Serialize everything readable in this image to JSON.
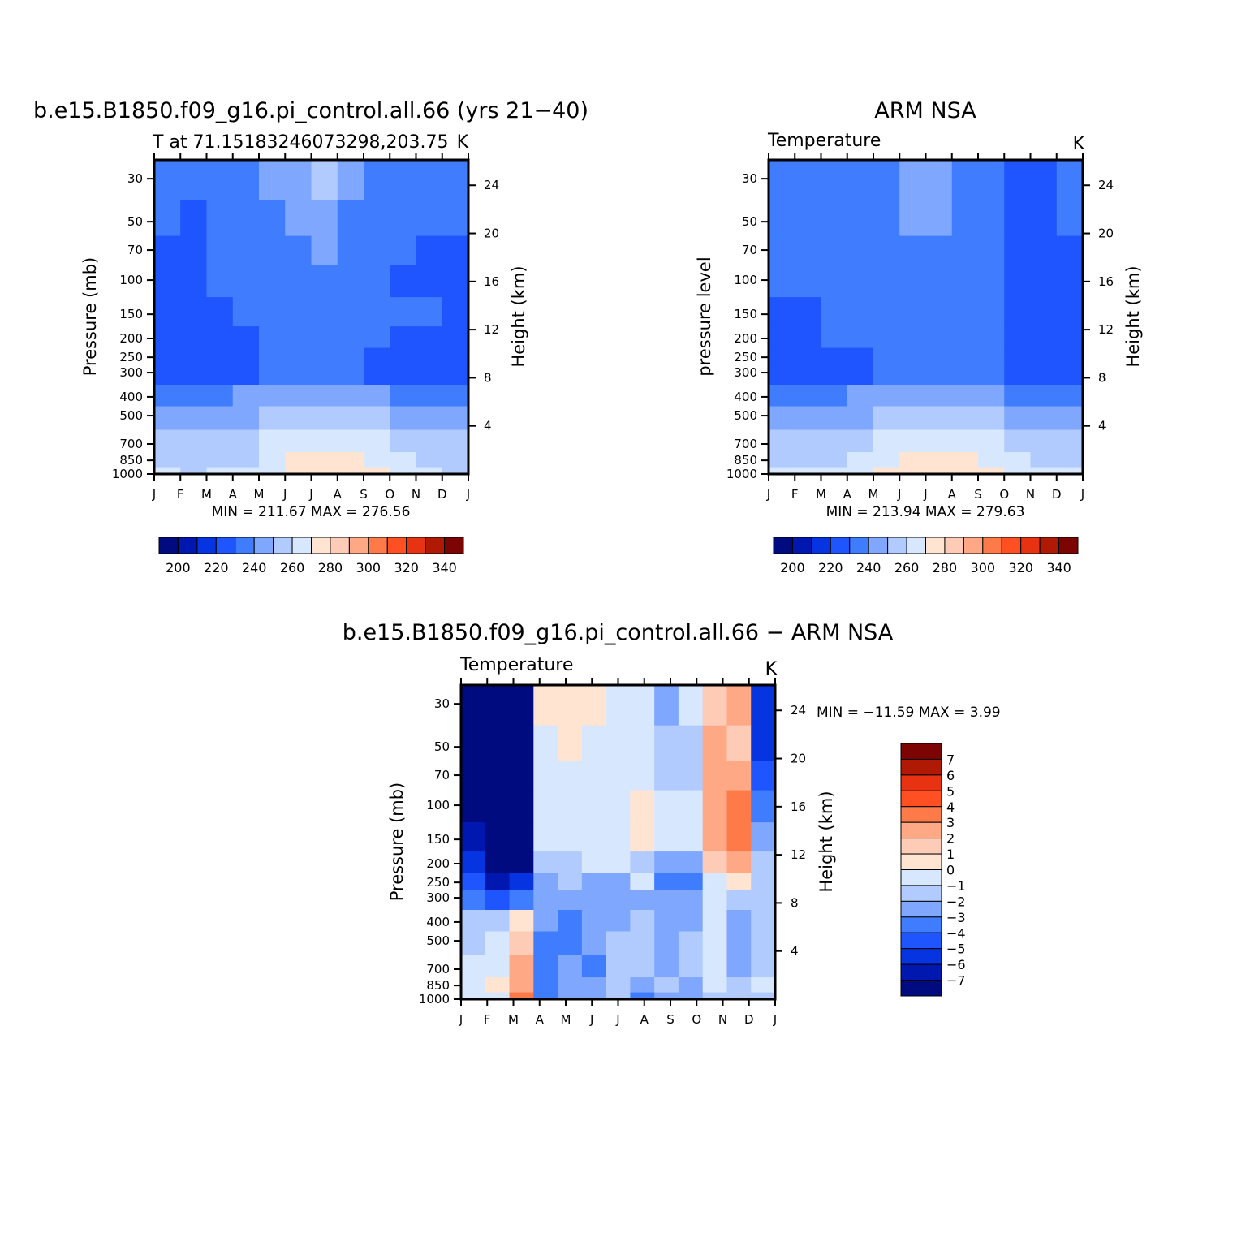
{
  "chart_data": [
    {
      "type": "heatmap",
      "title": "b.e15.B1850.f09_g16.pi_control.all.66 (yrs 21−40)",
      "left_label": "T at 71.15183246073298,203.75",
      "units": "K",
      "ylabel": "Pressure (mb)",
      "right_ylabel": "Height (km)",
      "x_ticks": [
        "J",
        "F",
        "M",
        "A",
        "M",
        "J",
        "J",
        "A",
        "S",
        "O",
        "N",
        "D",
        "J"
      ],
      "y_ticks": [
        30,
        50,
        70,
        100,
        150,
        200,
        250,
        300,
        400,
        500,
        700,
        850,
        1000
      ],
      "right_y_ticks": [
        24,
        20,
        16,
        12,
        8,
        4
      ],
      "stats": "MIN = 211.67 MAX = 276.56",
      "min": 211.67,
      "max": 276.56,
      "colorbar": {
        "labels": [
          "200",
          "220",
          "240",
          "260",
          "280",
          "300",
          "320",
          "340"
        ]
      },
      "values": [
        [
          235,
          233,
          236,
          238,
          242,
          246,
          250,
          244,
          238,
          235,
          236,
          234
        ],
        [
          230,
          229,
          232,
          234,
          238,
          240,
          241,
          239,
          236,
          232,
          231,
          230
        ],
        [
          226,
          227,
          232,
          234,
          236,
          239,
          240,
          238,
          236,
          230,
          229,
          228
        ],
        [
          224,
          226,
          230,
          233,
          234,
          236,
          238,
          236,
          234,
          228,
          227,
          226
        ],
        [
          222,
          224,
          225,
          232,
          234,
          235,
          235,
          234,
          232,
          230,
          232,
          225
        ],
        [
          222,
          222,
          224,
          229,
          232,
          232,
          232,
          232,
          231,
          228,
          226,
          224
        ],
        [
          222,
          223,
          225,
          227,
          233,
          233,
          233,
          232,
          228,
          224,
          223,
          222
        ],
        [
          222,
          222,
          223,
          225,
          230,
          230,
          231,
          230,
          226,
          224,
          223,
          222
        ],
        [
          236,
          236,
          238,
          241,
          243,
          245,
          246,
          244,
          242,
          238,
          236,
          235
        ],
        [
          244,
          244,
          246,
          248,
          252,
          254,
          255,
          254,
          251,
          248,
          245,
          244
        ],
        [
          251,
          251,
          252,
          256,
          261,
          264,
          266,
          263,
          260,
          257,
          253,
          252
        ],
        [
          255,
          254,
          256,
          259,
          264,
          271,
          274,
          271,
          267,
          262,
          258,
          256
        ],
        [
          260,
          259,
          260,
          263,
          268,
          276,
          276,
          274,
          270,
          265,
          260,
          259
        ]
      ]
    },
    {
      "type": "heatmap",
      "title": "ARM NSA",
      "left_label": "Temperature",
      "units": "K",
      "ylabel": "pressure level",
      "right_ylabel": "Height (km)",
      "x_ticks": [
        "J",
        "F",
        "M",
        "A",
        "M",
        "J",
        "J",
        "A",
        "S",
        "O",
        "N",
        "D",
        "J"
      ],
      "y_ticks": [
        30,
        50,
        70,
        100,
        150,
        200,
        250,
        300,
        400,
        500,
        700,
        850,
        1000
      ],
      "right_y_ticks": [
        24,
        20,
        16,
        12,
        8,
        4
      ],
      "stats": "MIN = 213.94 MAX = 279.63",
      "min": 213.94,
      "max": 279.63,
      "colorbar": {
        "labels": [
          "200",
          "220",
          "240",
          "260",
          "280",
          "300",
          "320",
          "340"
        ]
      },
      "values": [
        [
          232,
          231,
          234,
          237,
          238,
          240,
          245,
          238,
          236,
          228,
          227,
          232
        ],
        [
          232,
          231,
          233,
          236,
          238,
          240,
          241,
          238,
          235,
          229,
          228,
          230
        ],
        [
          231,
          231,
          233,
          235,
          237,
          239,
          239,
          238,
          235,
          229,
          227,
          229
        ],
        [
          230,
          230,
          232,
          235,
          237,
          238,
          238,
          238,
          235,
          229,
          227,
          228
        ],
        [
          229,
          229,
          231,
          234,
          236,
          237,
          237,
          237,
          234,
          229,
          227,
          228
        ],
        [
          228,
          227,
          230,
          233,
          235,
          236,
          236,
          236,
          233,
          229,
          227,
          227
        ],
        [
          226,
          225,
          226,
          229,
          233,
          235,
          235,
          234,
          231,
          229,
          227,
          226
        ],
        [
          225,
          224,
          225,
          228,
          233,
          234,
          235,
          234,
          230,
          228,
          226,
          226
        ],
        [
          237,
          237,
          238,
          241,
          243,
          245,
          246,
          244,
          242,
          238,
          236,
          236
        ],
        [
          245,
          245,
          247,
          249,
          252,
          254,
          256,
          254,
          251,
          248,
          246,
          245
        ],
        [
          252,
          252,
          253,
          257,
          262,
          265,
          267,
          264,
          261,
          258,
          254,
          253
        ],
        [
          256,
          255,
          257,
          261,
          266,
          273,
          275,
          273,
          268,
          263,
          259,
          257
        ],
        [
          260,
          260,
          261,
          264,
          270,
          278,
          279,
          277,
          272,
          266,
          261,
          260
        ]
      ]
    },
    {
      "type": "heatmap",
      "title": "b.e15.B1850.f09_g16.pi_control.all.66 − ARM NSA",
      "left_label": "Temperature",
      "units": "K",
      "ylabel": "Pressure (mb)",
      "right_ylabel": "Height (km)",
      "x_ticks": [
        "J",
        "F",
        "M",
        "A",
        "M",
        "J",
        "J",
        "A",
        "S",
        "O",
        "N",
        "D",
        "J"
      ],
      "y_ticks": [
        30,
        50,
        70,
        100,
        150,
        200,
        250,
        300,
        400,
        500,
        700,
        850,
        1000
      ],
      "right_y_ticks": [
        24,
        20,
        16,
        12,
        8,
        4
      ],
      "stats": "MIN = −11.59 MAX =    3.99",
      "min": -11.59,
      "max": 3.99,
      "colorbar": {
        "labels": [
          "7",
          "6",
          "5",
          "4",
          "3",
          "2",
          "1",
          "0",
          "−1",
          "−2",
          "−3",
          "−4",
          "−5",
          "−6",
          "−7"
        ]
      },
      "values": [
        [
          -11,
          -11,
          -10,
          0.5,
          0.8,
          0.3,
          -0.5,
          -0.5,
          -2.5,
          -1,
          1.5,
          2,
          -6
        ],
        [
          -11,
          -11,
          -10,
          -0.5,
          0.3,
          -0.5,
          -0.7,
          -0.7,
          -2,
          -2,
          2,
          1.5,
          -6
        ],
        [
          -10,
          -11,
          -10,
          -0.6,
          -0.7,
          -0.6,
          -0.6,
          -0.8,
          -1.5,
          -1.5,
          2.5,
          2,
          -5
        ],
        [
          -9,
          -11,
          -10,
          -0.8,
          -0.7,
          -0.5,
          -0.5,
          0.5,
          -0.8,
          -1,
          2.5,
          3,
          -4
        ],
        [
          -7,
          -10.5,
          -10,
          -1,
          -0.8,
          -0.6,
          -0.6,
          0.6,
          -0.8,
          -0.8,
          2,
          3.5,
          -3
        ],
        [
          -6,
          -10,
          -9,
          -1.5,
          -1.2,
          -1,
          -0.8,
          -1.5,
          -3,
          -2.5,
          1,
          2.5,
          -2
        ],
        [
          -5,
          -7,
          -6,
          -2.5,
          -2,
          -2.2,
          -2.5,
          -0.8,
          -3.5,
          -4,
          -1,
          0.5,
          -2
        ],
        [
          -4,
          -5,
          -3.5,
          -2.5,
          -2.2,
          -2.5,
          -2.8,
          -2.2,
          -2.2,
          -2.5,
          -1,
          -1.5,
          -2
        ],
        [
          -2,
          -1.5,
          0.5,
          -2.5,
          -3.5,
          -3,
          -2.5,
          -2,
          -3,
          -2.5,
          -1,
          -2.5,
          -2
        ],
        [
          -1.5,
          -0.8,
          1.5,
          -3.5,
          -3.5,
          -2.8,
          -1.8,
          -2,
          -2.5,
          -2,
          -0.8,
          -3,
          -2
        ],
        [
          -1,
          -0.5,
          2,
          -3.5,
          -3,
          -3.2,
          -1.5,
          -1.8,
          -2.5,
          -2,
          -0.8,
          -3,
          -1.5
        ],
        [
          -0.5,
          0.5,
          2.5,
          -3.5,
          -3,
          -3,
          -1.8,
          -2.5,
          -2,
          -2.2,
          -0.5,
          -2,
          -1
        ],
        [
          -0.8,
          -0.5,
          3.5,
          -3.5,
          -3,
          -3,
          -2,
          -3.5,
          -2.5,
          -2.5,
          -1.2,
          -1.5,
          -1.5
        ]
      ]
    }
  ],
  "palettes": {
    "absolute": [
      "#000b80",
      "#0018b0",
      "#0534e0",
      "#1f55fe",
      "#3f7cfe",
      "#80a7fe",
      "#b2cbfe",
      "#d6e7fe",
      "#ffe4d2",
      "#feccb6",
      "#fea886",
      "#fe7a48",
      "#fe5022",
      "#e73312",
      "#b01a04",
      "#7c0402"
    ],
    "difference": [
      "#000b80",
      "#0018b0",
      "#0534e0",
      "#1f55fe",
      "#3f7cfe",
      "#80a7fe",
      "#b2cbfe",
      "#d6e7fe",
      "#ffe4d2",
      "#feccb6",
      "#fea886",
      "#fe7a48",
      "#fe5022",
      "#e73312",
      "#b01a04",
      "#7c0402"
    ]
  }
}
